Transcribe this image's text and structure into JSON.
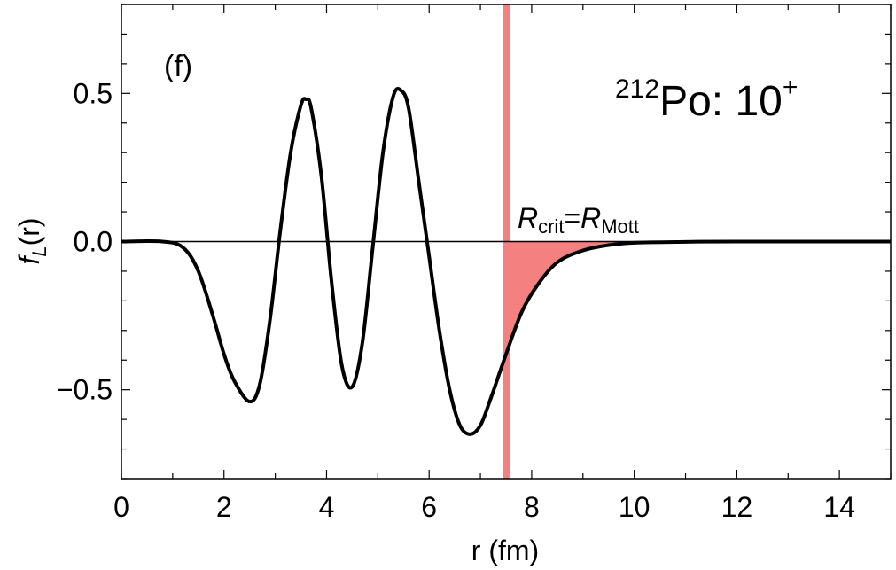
{
  "chart_data": {
    "type": "line",
    "panel_label": "(f)",
    "annotation": {
      "nucleus_mass": "212",
      "nucleus_symbol": "Po: 10",
      "state_sign": "+",
      "rcrit_main": "R",
      "rcrit_sub": "crit",
      "equals": "=",
      "rmott_main": "R",
      "rmott_sub": "Mott"
    },
    "xlabel": "r (fm)",
    "ylabel_main": "f",
    "ylabel_sub": "L",
    "ylabel_tail": "(r)",
    "xlim": [
      0,
      15
    ],
    "ylim": [
      -0.8,
      0.8
    ],
    "x_ticks": [
      0,
      2,
      4,
      6,
      8,
      10,
      12,
      14
    ],
    "y_ticks": [
      0.5,
      0.0,
      -0.5
    ],
    "y_tick_labels": [
      "0.5",
      "0.0",
      "−0.5"
    ],
    "critical_radius": 7.5,
    "shade_color": "#f48080",
    "line_color": "#000000",
    "series": [
      {
        "x": [
          0,
          0.8,
          1.2,
          1.5,
          1.8,
          2.0,
          2.2,
          2.5,
          2.7,
          2.9,
          3.1,
          3.3,
          3.5,
          3.6,
          3.7,
          3.9,
          4.1,
          4.3,
          4.5,
          4.7,
          4.9,
          5.1,
          5.3,
          5.45,
          5.6,
          5.8,
          6.0,
          6.2,
          6.4,
          6.6,
          6.8,
          7.0,
          7.2,
          7.5,
          7.8,
          8.1,
          8.5,
          9.0,
          9.5,
          10.0,
          11.0,
          12.0,
          15.0
        ],
        "y": [
          0,
          0,
          -0.02,
          -0.1,
          -0.26,
          -0.38,
          -0.47,
          -0.54,
          -0.48,
          -0.26,
          0.04,
          0.3,
          0.46,
          0.48,
          0.45,
          0.22,
          -0.14,
          -0.42,
          -0.49,
          -0.34,
          -0.02,
          0.3,
          0.49,
          0.51,
          0.45,
          0.2,
          -0.05,
          -0.3,
          -0.5,
          -0.62,
          -0.65,
          -0.62,
          -0.53,
          -0.38,
          -0.24,
          -0.15,
          -0.07,
          -0.03,
          -0.012,
          -0.004,
          -0.001,
          0,
          0
        ]
      }
    ]
  }
}
